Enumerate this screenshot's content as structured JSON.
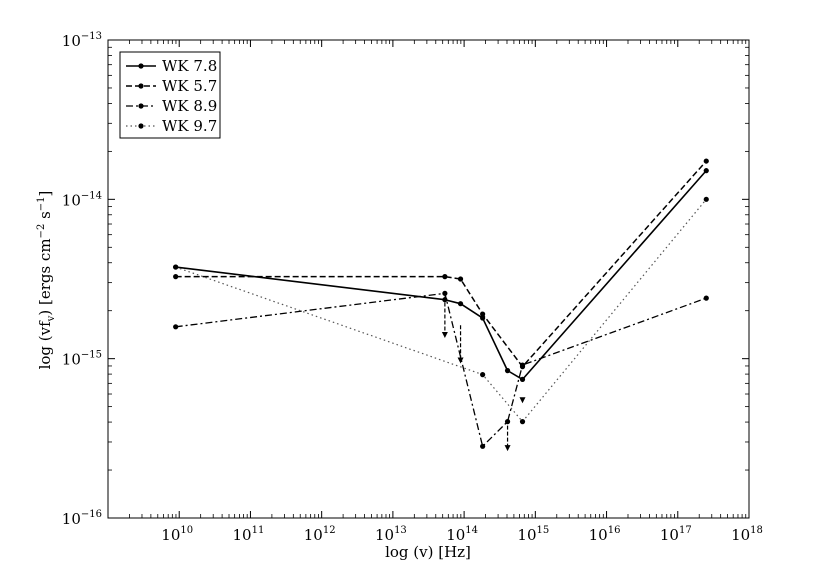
{
  "chart_data": {
    "type": "line",
    "title": "",
    "xlabel": "log (v) [Hz]",
    "ylabel": "log (vf_v) [ergs cm^-2 s^-1]",
    "xscale": "log",
    "yscale": "log",
    "xlim_exp": [
      9,
      18
    ],
    "ylim_exp": [
      -16,
      -13
    ],
    "x_ticks": [
      {
        "base": "10",
        "exp": "10"
      },
      {
        "base": "10",
        "exp": "11"
      },
      {
        "base": "10",
        "exp": "12"
      },
      {
        "base": "10",
        "exp": "13"
      },
      {
        "base": "10",
        "exp": "14"
      },
      {
        "base": "10",
        "exp": "15"
      },
      {
        "base": "10",
        "exp": "16"
      },
      {
        "base": "10",
        "exp": "17"
      },
      {
        "base": "10",
        "exp": "18"
      }
    ],
    "y_ticks": [
      {
        "base": "10",
        "exp": "−16"
      },
      {
        "base": "10",
        "exp": "−15"
      },
      {
        "base": "10",
        "exp": "−14"
      },
      {
        "base": "10",
        "exp": "−13"
      }
    ],
    "ylabel_parts": {
      "main": "log (vf",
      "sub": "v",
      "mid": ") [ergs cm",
      "sup1": "−2",
      "mid2": " s",
      "sup2": "−1",
      "end": "]"
    },
    "legend": {
      "position": "top-left"
    },
    "series": [
      {
        "name": "WK 7.8",
        "style": "solid",
        "points": [
          [
            9.95,
            -14.425
          ],
          [
            13.73,
            -14.63
          ],
          [
            13.95,
            -14.655
          ],
          [
            14.26,
            -14.745
          ],
          [
            14.61,
            -15.075
          ],
          [
            14.82,
            -15.13
          ],
          [
            17.4,
            -13.82
          ]
        ],
        "arrows": []
      },
      {
        "name": "WK 5.7",
        "style": "dashed",
        "points": [
          [
            9.95,
            -14.485
          ],
          [
            13.73,
            -14.485
          ],
          [
            13.95,
            -14.5
          ],
          [
            14.26,
            -14.72
          ],
          [
            14.82,
            -15.05
          ],
          [
            17.4,
            -13.76
          ]
        ],
        "arrows": [
          [
            13.73,
            -14.61,
            -14.87
          ],
          [
            13.95,
            -14.79,
            -15.03
          ],
          [
            14.82,
            -15.26,
            -15.28
          ]
        ]
      },
      {
        "name": "WK 8.9",
        "style": "dashdot",
        "points": [
          [
            9.95,
            -14.8
          ],
          [
            13.73,
            -14.59
          ],
          [
            14.26,
            -15.55
          ],
          [
            14.61,
            -15.395
          ],
          [
            14.82,
            -15.04
          ],
          [
            17.4,
            -14.62
          ]
        ],
        "arrows": [
          [
            14.61,
            -15.42,
            -15.58
          ]
        ]
      },
      {
        "name": "WK 9.7",
        "style": "dotted",
        "points": [
          [
            9.95,
            -14.425
          ],
          [
            14.26,
            -15.1
          ],
          [
            14.82,
            -15.395
          ],
          [
            17.4,
            -14.0
          ]
        ],
        "arrows": []
      }
    ]
  }
}
